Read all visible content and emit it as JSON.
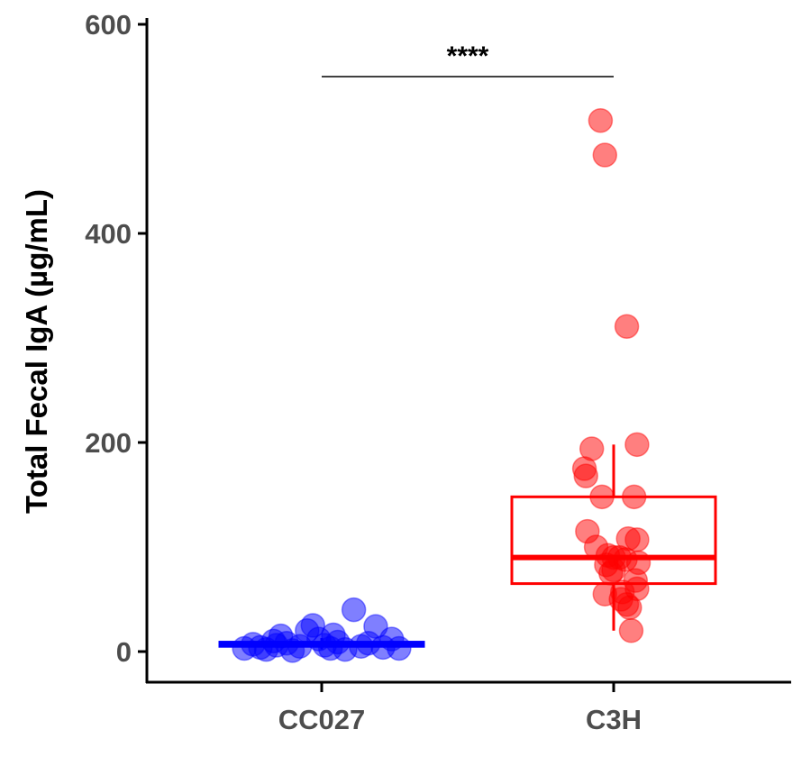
{
  "chart_data": {
    "type": "box",
    "title": "",
    "xlabel": "",
    "ylabel": "Total Fecal IgA (µg/mL)",
    "categories": [
      "CC027",
      "C3H"
    ],
    "ylim": [
      -28,
      605
    ],
    "yticks": [
      0,
      200,
      400,
      600
    ],
    "grid": false,
    "legend": "none",
    "series": [
      {
        "category": "CC027",
        "color": "#0000ff",
        "box": {
          "min": 2,
          "q1": 5,
          "median": 7,
          "q3": 9,
          "max": 13
        },
        "points": [
          {
            "x": -0.53,
            "y": 3
          },
          {
            "x": -0.47,
            "y": 7
          },
          {
            "x": -0.42,
            "y": 4
          },
          {
            "x": -0.38,
            "y": 2
          },
          {
            "x": -0.33,
            "y": 10
          },
          {
            "x": -0.28,
            "y": 15
          },
          {
            "x": -0.24,
            "y": 8
          },
          {
            "x": -0.2,
            "y": 1
          },
          {
            "x": -0.15,
            "y": 5
          },
          {
            "x": -0.1,
            "y": 20
          },
          {
            "x": -0.06,
            "y": 25
          },
          {
            "x": -0.02,
            "y": 12
          },
          {
            "x": 0.02,
            "y": 6
          },
          {
            "x": 0.06,
            "y": 3
          },
          {
            "x": 0.11,
            "y": 9
          },
          {
            "x": 0.16,
            "y": 2
          },
          {
            "x": 0.22,
            "y": 40
          },
          {
            "x": 0.27,
            "y": 5
          },
          {
            "x": 0.32,
            "y": 8
          },
          {
            "x": 0.37,
            "y": 24
          },
          {
            "x": 0.42,
            "y": 4
          },
          {
            "x": 0.48,
            "y": 12
          },
          {
            "x": 0.53,
            "y": 3
          },
          {
            "x": -0.31,
            "y": 6
          },
          {
            "x": 0.08,
            "y": 16
          }
        ]
      },
      {
        "category": "C3H",
        "color": "#ff0000",
        "box": {
          "min": 20,
          "q1": 65,
          "median": 90,
          "q3": 148,
          "max": 198
        },
        "points": [
          {
            "x": -0.09,
            "y": 508
          },
          {
            "x": -0.06,
            "y": 475
          },
          {
            "x": 0.09,
            "y": 311
          },
          {
            "x": -0.15,
            "y": 194
          },
          {
            "x": 0.16,
            "y": 198
          },
          {
            "x": -0.2,
            "y": 175
          },
          {
            "x": -0.19,
            "y": 168
          },
          {
            "x": -0.08,
            "y": 148
          },
          {
            "x": 0.14,
            "y": 148
          },
          {
            "x": -0.18,
            "y": 115
          },
          {
            "x": -0.12,
            "y": 100
          },
          {
            "x": 0.1,
            "y": 108
          },
          {
            "x": 0.16,
            "y": 107
          },
          {
            "x": -0.04,
            "y": 92
          },
          {
            "x": 0.0,
            "y": 90
          },
          {
            "x": 0.04,
            "y": 90
          },
          {
            "x": 0.08,
            "y": 88
          },
          {
            "x": 0.17,
            "y": 85
          },
          {
            "x": -0.05,
            "y": 83
          },
          {
            "x": -0.02,
            "y": 75
          },
          {
            "x": 0.0,
            "y": 78
          },
          {
            "x": 0.15,
            "y": 68
          },
          {
            "x": 0.16,
            "y": 60
          },
          {
            "x": 0.06,
            "y": 57
          },
          {
            "x": -0.06,
            "y": 55
          },
          {
            "x": 0.05,
            "y": 50
          },
          {
            "x": 0.09,
            "y": 45
          },
          {
            "x": 0.11,
            "y": 42
          },
          {
            "x": 0.12,
            "y": 20
          }
        ]
      }
    ],
    "annotations": [
      {
        "text": "****",
        "from": "CC027",
        "to": "C3H",
        "y": 550
      }
    ]
  }
}
